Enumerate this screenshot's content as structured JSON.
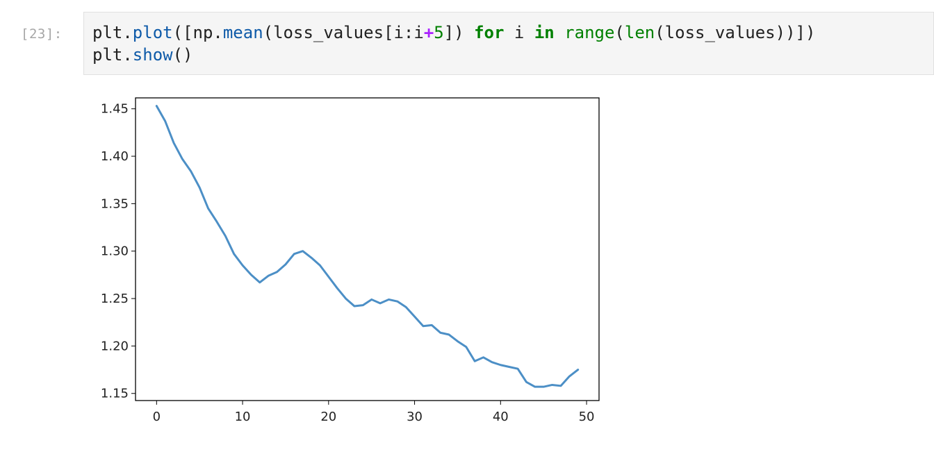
{
  "cell": {
    "prompt": "[23]:",
    "code_lines": [
      [
        {
          "t": "plt.",
          "c": ""
        },
        {
          "t": "plot",
          "c": "fn"
        },
        {
          "t": "([np.",
          "c": ""
        },
        {
          "t": "mean",
          "c": "fn"
        },
        {
          "t": "(loss_values[i:i",
          "c": ""
        },
        {
          "t": "+",
          "c": "op"
        },
        {
          "t": "5",
          "c": "num"
        },
        {
          "t": "]) ",
          "c": ""
        },
        {
          "t": "for",
          "c": "kw"
        },
        {
          "t": " i ",
          "c": ""
        },
        {
          "t": "in",
          "c": "kw"
        },
        {
          "t": " ",
          "c": ""
        },
        {
          "t": "range",
          "c": "bi"
        },
        {
          "t": "(",
          "c": ""
        },
        {
          "t": "len",
          "c": "bi"
        },
        {
          "t": "(loss_values))])",
          "c": ""
        }
      ],
      [
        {
          "t": "plt.",
          "c": ""
        },
        {
          "t": "show",
          "c": "fn"
        },
        {
          "t": "()",
          "c": ""
        }
      ]
    ]
  },
  "chart_data": {
    "type": "line",
    "title": "",
    "xlabel": "",
    "ylabel": "",
    "xlim": [
      -2.45,
      51.45
    ],
    "ylim": [
      1.1425,
      1.4615
    ],
    "xticks": [
      0,
      10,
      20,
      30,
      40,
      50
    ],
    "yticks": [
      1.15,
      1.2,
      1.25,
      1.3,
      1.35,
      1.4,
      1.45
    ],
    "ytick_labels": [
      "1.15",
      "1.20",
      "1.25",
      "1.30",
      "1.35",
      "1.40",
      "1.45"
    ],
    "xtick_labels": [
      "0",
      "10",
      "20",
      "30",
      "40",
      "50"
    ],
    "grid": false,
    "line_color": "#4c8fc6",
    "series": [
      {
        "x": [
          0,
          1,
          2,
          3,
          4,
          5,
          6,
          7,
          8,
          9,
          10,
          11,
          12,
          13,
          14,
          15,
          16,
          17,
          18,
          19,
          20,
          21,
          22,
          23,
          24,
          25,
          26,
          27,
          28,
          29,
          30,
          31,
          32,
          33,
          34,
          35,
          36,
          37,
          38,
          39,
          40,
          41,
          42,
          43,
          44,
          45,
          46,
          47,
          48,
          49
        ],
        "values": [
          1.453,
          1.437,
          1.414,
          1.397,
          1.384,
          1.367,
          1.345,
          1.331,
          1.316,
          1.297,
          1.285,
          1.275,
          1.267,
          1.274,
          1.278,
          1.286,
          1.297,
          1.3,
          1.293,
          1.285,
          1.273,
          1.261,
          1.25,
          1.242,
          1.243,
          1.249,
          1.245,
          1.249,
          1.247,
          1.241,
          1.231,
          1.221,
          1.222,
          1.214,
          1.212,
          1.205,
          1.199,
          1.184,
          1.188,
          1.183,
          1.18,
          1.178,
          1.176,
          1.162,
          1.157,
          1.157,
          1.159,
          1.158,
          1.168,
          1.175
        ]
      }
    ]
  }
}
